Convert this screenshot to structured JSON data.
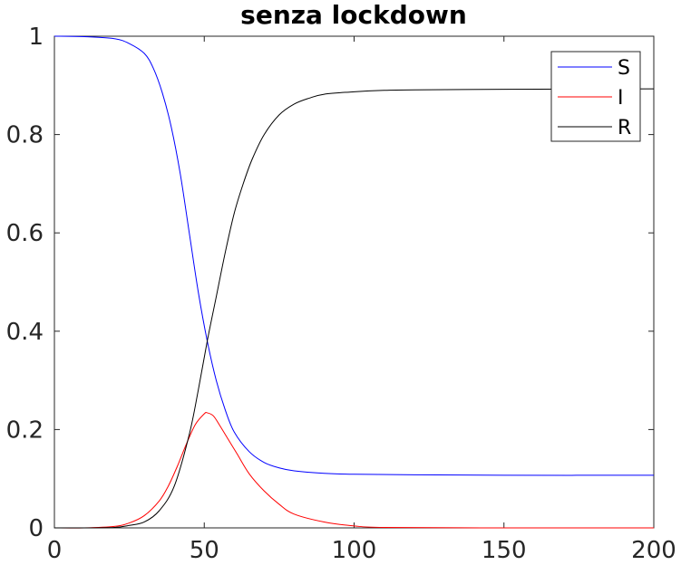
{
  "chart_data": {
    "type": "line",
    "title": "senza lockdown",
    "xlabel": "",
    "ylabel": "",
    "xlim": [
      0,
      200
    ],
    "ylim": [
      0,
      1
    ],
    "xticks": [
      0,
      50,
      100,
      150,
      200
    ],
    "yticks": [
      0,
      0.2,
      0.4,
      0.6,
      0.8,
      1
    ],
    "xtick_labels": [
      "0",
      "50",
      "100",
      "150",
      "200"
    ],
    "ytick_labels": [
      "0",
      "0.2",
      "0.4",
      "0.6",
      "0.8",
      "1"
    ],
    "grid": false,
    "legend_position": "top-right",
    "series": [
      {
        "name": "S",
        "color": "#0000ff",
        "x": [
          0,
          10,
          20,
          25,
          30,
          33,
          36,
          39,
          42,
          45,
          48,
          51,
          54,
          57,
          60,
          65,
          70,
          75,
          80,
          90,
          100,
          120,
          150,
          200
        ],
        "y": [
          1.0,
          0.999,
          0.995,
          0.985,
          0.965,
          0.935,
          0.885,
          0.815,
          0.72,
          0.6,
          0.48,
          0.38,
          0.3,
          0.24,
          0.195,
          0.155,
          0.133,
          0.122,
          0.116,
          0.111,
          0.109,
          0.108,
          0.107,
          0.107
        ]
      },
      {
        "name": "I",
        "color": "#ff0000",
        "x": [
          0,
          10,
          20,
          25,
          30,
          35,
          38,
          41,
          44,
          47,
          50,
          51,
          53,
          55,
          58,
          61,
          65,
          70,
          75,
          80,
          90,
          100,
          110,
          150,
          200
        ],
        "y": [
          0.0,
          0.0,
          0.003,
          0.01,
          0.025,
          0.055,
          0.085,
          0.125,
          0.17,
          0.21,
          0.232,
          0.234,
          0.228,
          0.21,
          0.18,
          0.15,
          0.11,
          0.075,
          0.048,
          0.028,
          0.012,
          0.004,
          0.001,
          0.0,
          0.0
        ]
      },
      {
        "name": "R",
        "color": "#000000",
        "x": [
          0,
          10,
          20,
          25,
          30,
          35,
          40,
          45,
          48,
          51,
          54,
          57,
          60,
          63,
          66,
          70,
          75,
          80,
          85,
          90,
          100,
          110,
          120,
          150,
          200
        ],
        "y": [
          0.0,
          0.0,
          0.001,
          0.005,
          0.012,
          0.035,
          0.085,
          0.19,
          0.28,
          0.38,
          0.47,
          0.56,
          0.64,
          0.7,
          0.75,
          0.8,
          0.84,
          0.862,
          0.874,
          0.882,
          0.887,
          0.89,
          0.891,
          0.892,
          0.893
        ]
      }
    ]
  }
}
